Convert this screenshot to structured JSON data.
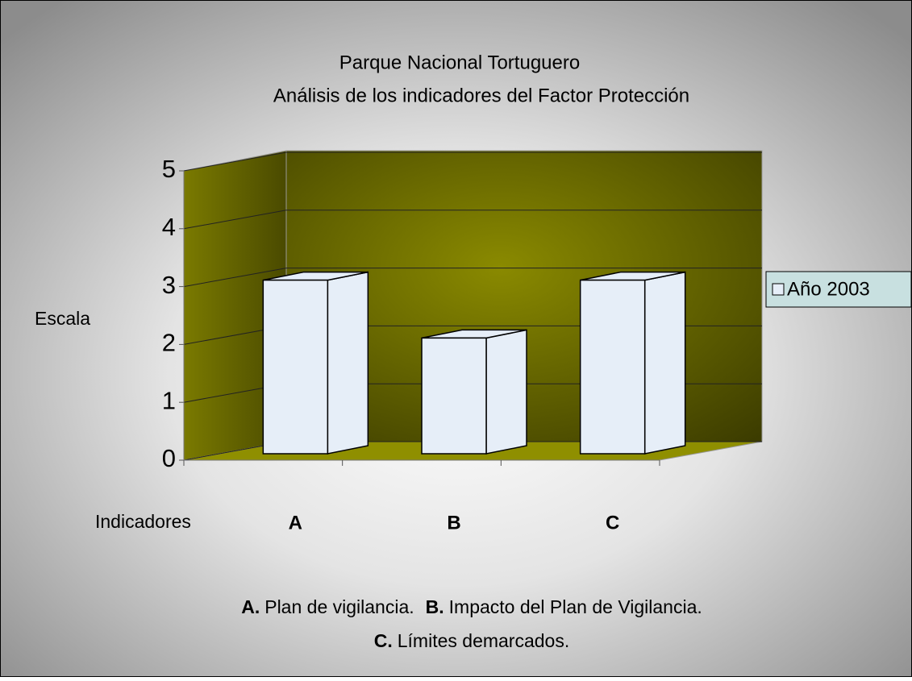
{
  "chart_data": {
    "type": "bar3d",
    "title": [
      "Parque Nacional Tortuguero",
      "Análisis de los indicadores del Factor  Protección"
    ],
    "ylabel": "Escala",
    "xlabel": "Indicadores",
    "categories": [
      "A",
      "B",
      "C"
    ],
    "series": [
      {
        "name": "Año 2003",
        "color": "#e6eef8",
        "values": [
          3,
          2,
          3
        ]
      }
    ],
    "ylim": [
      0,
      5
    ],
    "yticks": [
      0,
      1,
      2,
      3,
      4,
      5
    ],
    "grid": true,
    "legend": "right",
    "notes": [
      [
        {
          "key": "A.",
          "text": "Plan de vigilancia."
        },
        {
          "key": "B.",
          "text": "Impacto del Plan de Vigilancia."
        }
      ],
      [
        {
          "key": "C.",
          "text": "Límites demarcados."
        }
      ]
    ]
  }
}
